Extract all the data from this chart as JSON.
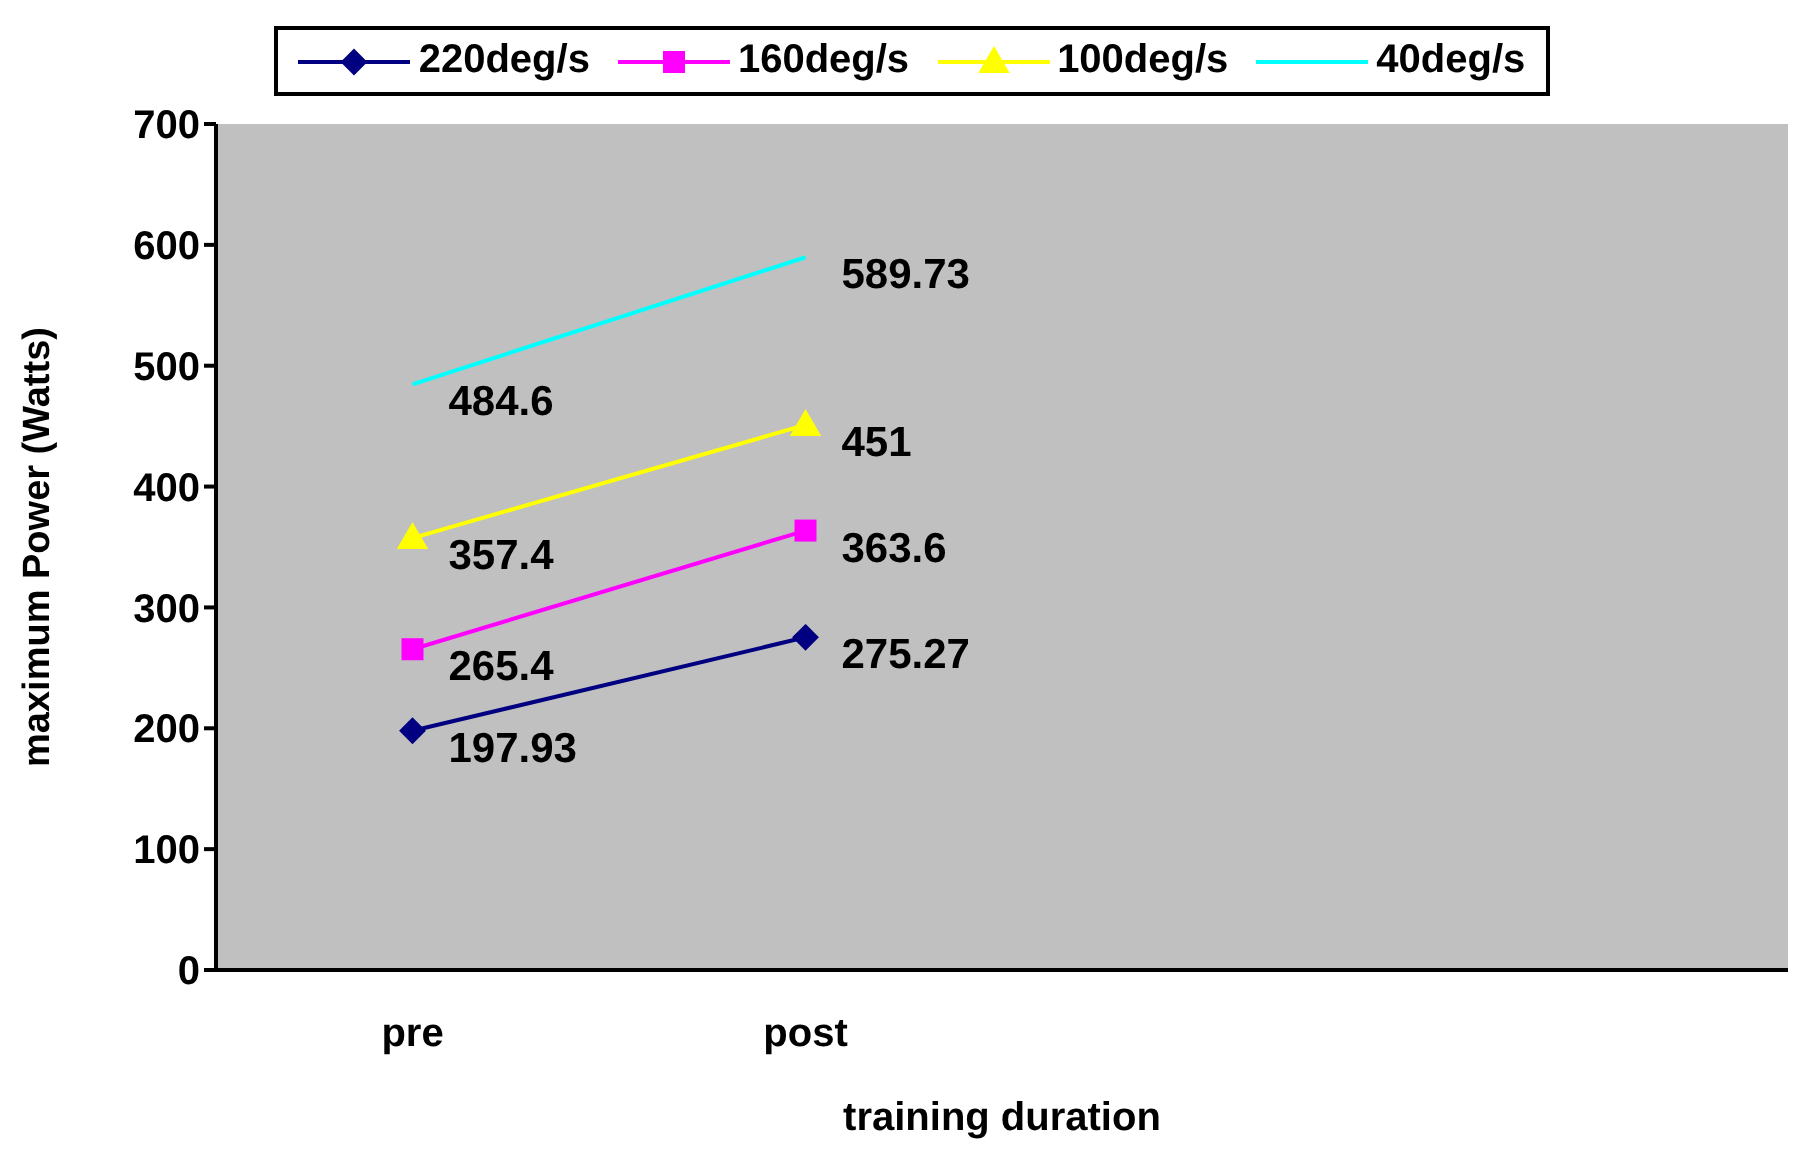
{
  "chart_data": {
    "type": "line",
    "xlabel": "training duration",
    "ylabel": "maximum Power (Watts)",
    "categories": [
      "pre",
      "post",
      null,
      null
    ],
    "series": [
      {
        "name": "220deg/s",
        "color": "#000080",
        "marker": "diamond",
        "values": [
          197.93,
          275.27,
          null,
          null
        ]
      },
      {
        "name": "160deg/s",
        "color": "#ff00ff",
        "marker": "square",
        "values": [
          265.4,
          363.6,
          null,
          null
        ]
      },
      {
        "name": "100deg/s",
        "color": "#ffff00",
        "marker": "triangle",
        "values": [
          357.4,
          451,
          null,
          null
        ]
      },
      {
        "name": "40deg/s",
        "color": "#00ffff",
        "marker": "none",
        "values": [
          484.6,
          589.73,
          null,
          null
        ]
      }
    ],
    "ylim": [
      0,
      700
    ],
    "yticks": [
      0,
      100,
      200,
      300,
      400,
      500,
      600,
      700
    ],
    "grid": false,
    "legend": "top",
    "data_labels": true
  }
}
